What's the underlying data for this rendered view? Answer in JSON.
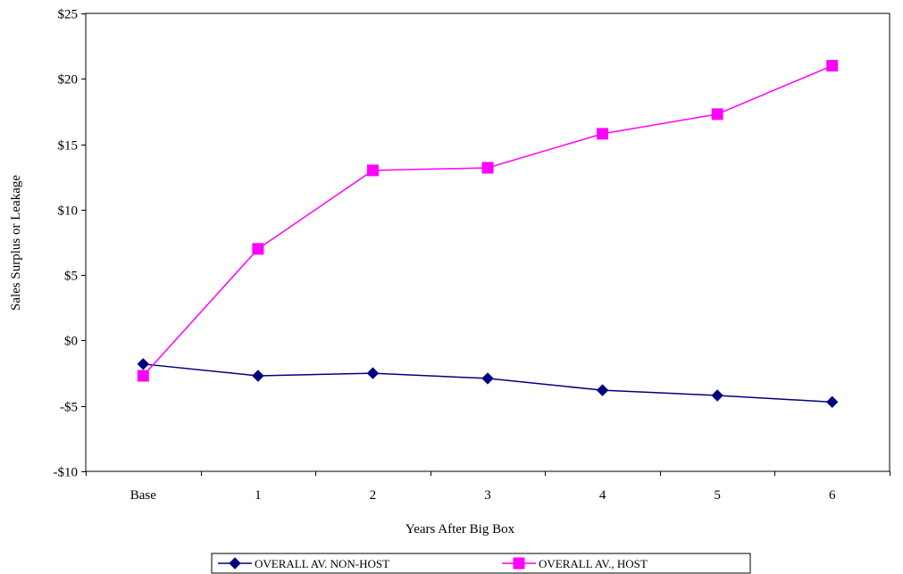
{
  "chart_data": {
    "type": "line",
    "title": "",
    "xlabel": "Years After Big Box",
    "ylabel": "Sales Surplus or Leakage",
    "categories": [
      "Base",
      "1",
      "2",
      "3",
      "4",
      "5",
      "6"
    ],
    "ylim": [
      -10,
      25
    ],
    "yticks": [
      -10,
      -5,
      0,
      5,
      10,
      15,
      20,
      25
    ],
    "ytick_labels": [
      "-$10",
      "-$5",
      "$0",
      "$5",
      "$10",
      "$15",
      "$20",
      "$25"
    ],
    "grid": true,
    "legend_position": "bottom",
    "series": [
      {
        "name": "OVERALL AV. NON-HOST",
        "values": [
          -1.8,
          -2.7,
          -2.5,
          -2.9,
          -3.8,
          -4.2,
          -4.7
        ],
        "color": "#000080",
        "marker": "diamond"
      },
      {
        "name": "OVERALL AV., HOST",
        "values": [
          -2.7,
          7.0,
          13.0,
          13.2,
          15.8,
          17.3,
          21.0
        ],
        "color": "#ff00ff",
        "marker": "square"
      }
    ]
  }
}
